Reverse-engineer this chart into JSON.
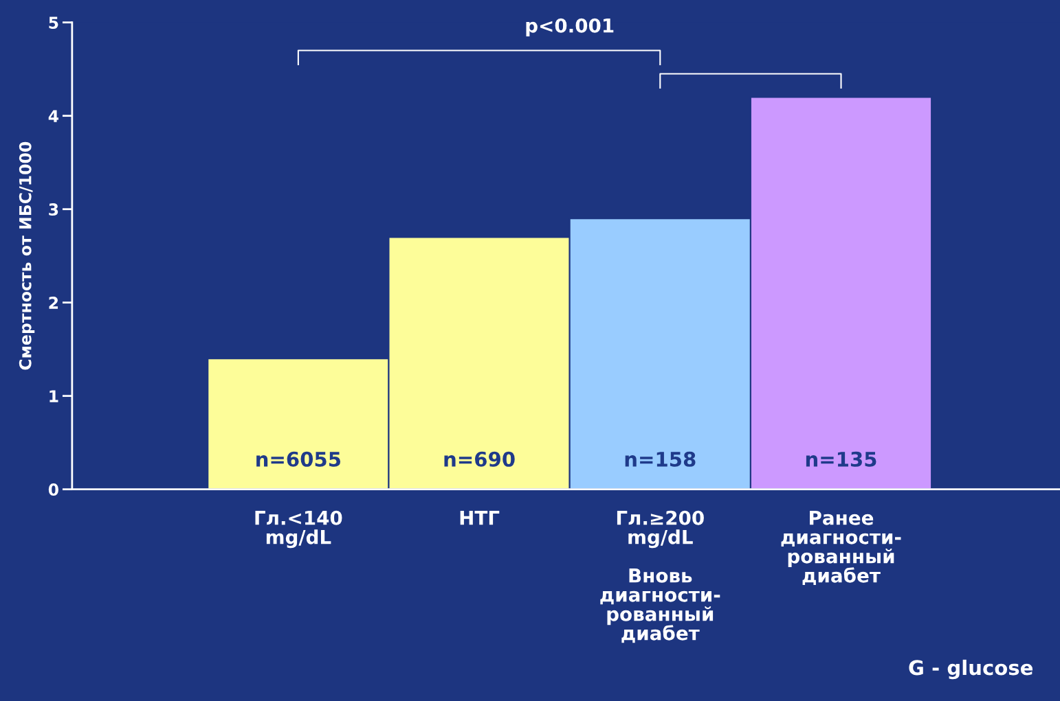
{
  "chart_data": {
    "type": "bar",
    "ylabel": "Смертность от ИБС/1000",
    "categories": [
      "Гл.<140\nmg/dL",
      "НТГ",
      "Гл.≥200\nmg/dL\n\nВновь\nдиагности-\nрованный\nдиабет",
      "Ранее\nдиагности-\nрованный\nдиабет"
    ],
    "values": [
      1.4,
      2.7,
      2.9,
      4.2
    ],
    "colors": [
      "#fdfd99",
      "#fdfd99",
      "#99ccff",
      "#cc99ff"
    ],
    "ylim": [
      0,
      5
    ],
    "yticks": [
      0,
      1,
      2,
      3,
      4,
      5
    ],
    "grid": false,
    "legend": false,
    "annotations": [
      "n=6055",
      "n=690",
      "n=158",
      "n=135",
      "p<0.001",
      "G - glucose"
    ]
  }
}
